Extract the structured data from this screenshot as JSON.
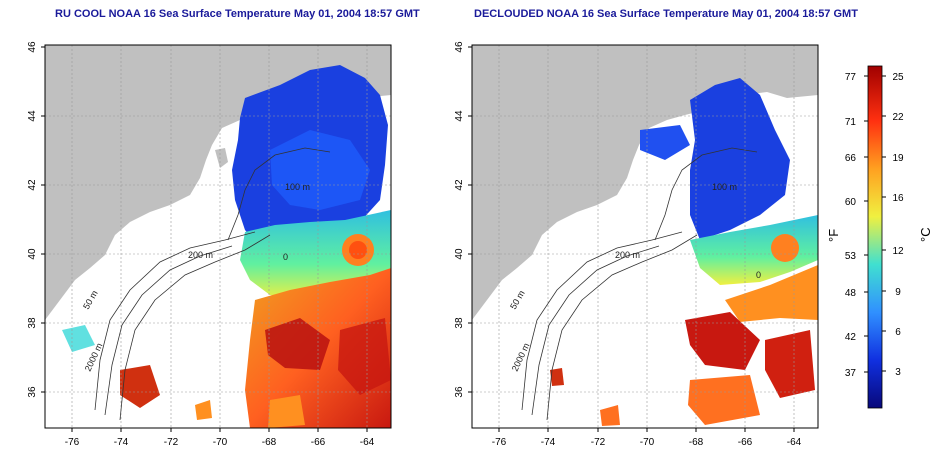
{
  "left_map": {
    "title": "RU COOL NOAA 16 Sea Surface Temperature May 01, 2004 18:57 GMT",
    "x_ticks": [
      "-76",
      "-74",
      "-72",
      "-70",
      "-68",
      "-66",
      "-64"
    ],
    "y_ticks": [
      "46",
      "44",
      "42",
      "40",
      "38",
      "36"
    ],
    "contour_labels": [
      "200 m",
      "50 m",
      "2000 m",
      "100 m",
      "0"
    ]
  },
  "right_map": {
    "title": "DECLOUDED NOAA 16 Sea Surface Temperature May 01, 2004 18:57 GMT",
    "x_ticks": [
      "-76",
      "-74",
      "-72",
      "-70",
      "-68",
      "-66",
      "-64"
    ],
    "y_ticks": [
      "46",
      "44",
      "42",
      "40",
      "38",
      "36"
    ],
    "contour_labels": [
      "200 m",
      "50 m",
      "2000 m",
      "100 m",
      "0"
    ]
  },
  "colorbar": {
    "fahrenheit_ticks": [
      "77",
      "71",
      "66",
      "60",
      "53",
      "48",
      "42",
      "37"
    ],
    "celsius_ticks": [
      "25",
      "22",
      "19",
      "16",
      "12",
      "9",
      "6",
      "3"
    ],
    "fahrenheit_label": "°F",
    "celsius_label": "°C",
    "colors": [
      "#08087a",
      "#1040ff",
      "#30a0ff",
      "#40e0d0",
      "#f0f040",
      "#ffa020",
      "#ff3010",
      "#a00000"
    ]
  },
  "colors": {
    "land": "#c0c0c0",
    "cold": "#1a40e0",
    "warm": "#ff7020",
    "hot": "#c81810",
    "title_color": "#1a1a9a"
  }
}
